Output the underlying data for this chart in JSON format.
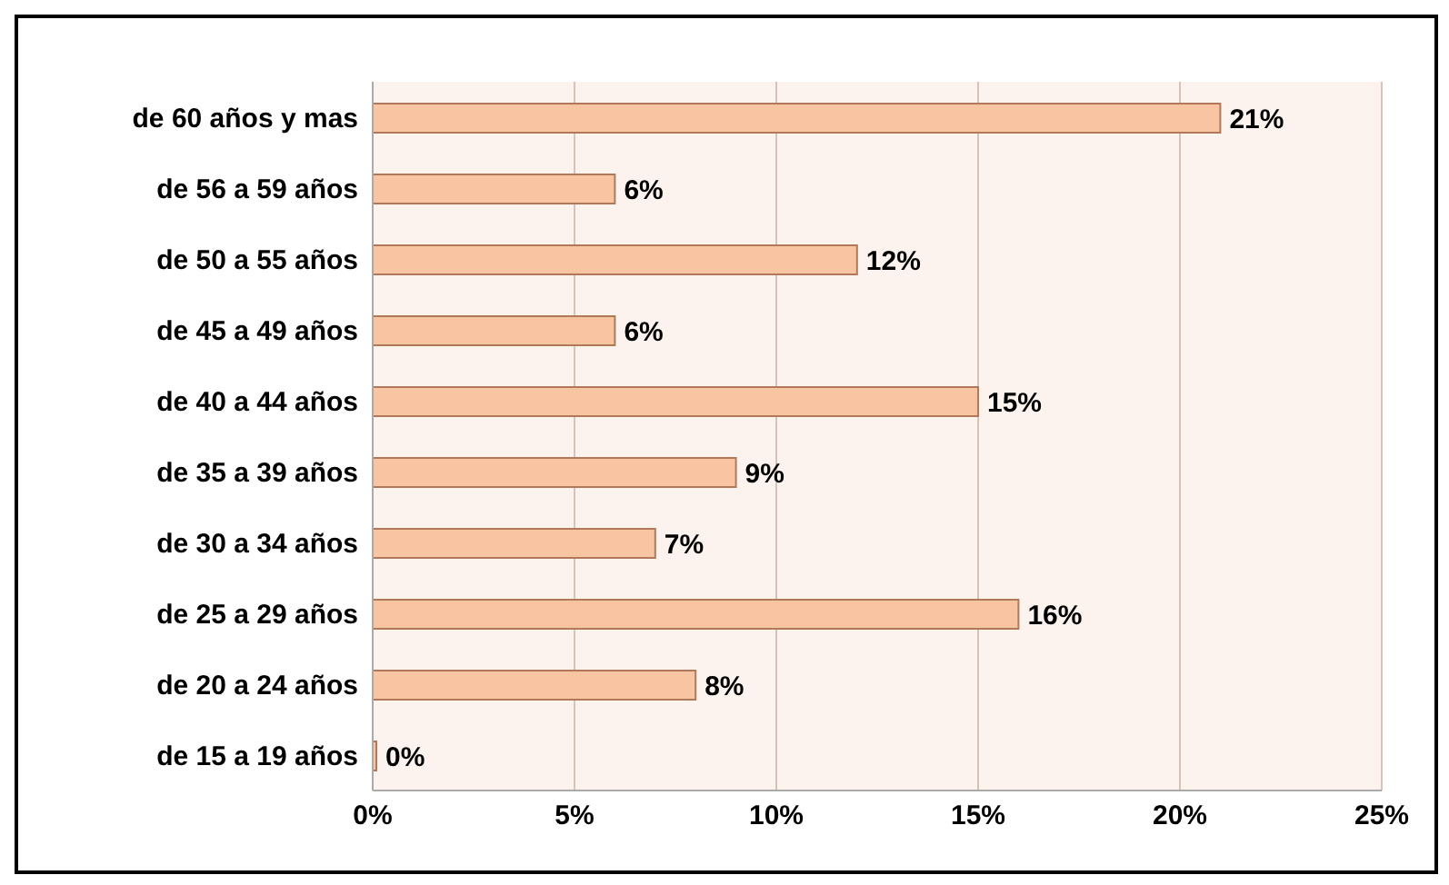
{
  "chart_data": {
    "type": "bar",
    "orientation": "horizontal",
    "categories": [
      "de 60 años y mas",
      "de 56  a 59 años",
      "de 50  a 55 años",
      "de 45  a 49 años",
      "de 40  a 44 años",
      "de 35  a 39 años",
      "de 30  a 34 años",
      "de 25 a 29 años",
      "de 20  a 24 años",
      "de 15 a 19 años"
    ],
    "values": [
      21,
      6,
      12,
      6,
      15,
      9,
      7,
      16,
      8,
      0
    ],
    "value_labels": [
      "21%",
      "6%",
      "12%",
      "6%",
      "15%",
      "9%",
      "7%",
      "16%",
      "8%",
      "0%"
    ],
    "color": "#f8c4a2",
    "xlim": [
      0,
      25
    ],
    "xticks": [
      {
        "value": 0,
        "label": "0%"
      },
      {
        "value": 5,
        "label": "5%"
      },
      {
        "value": 10,
        "label": "10%"
      },
      {
        "value": 15,
        "label": "15%"
      },
      {
        "value": 20,
        "label": "20%"
      },
      {
        "value": 25,
        "label": "25%"
      }
    ],
    "grid": "x"
  }
}
